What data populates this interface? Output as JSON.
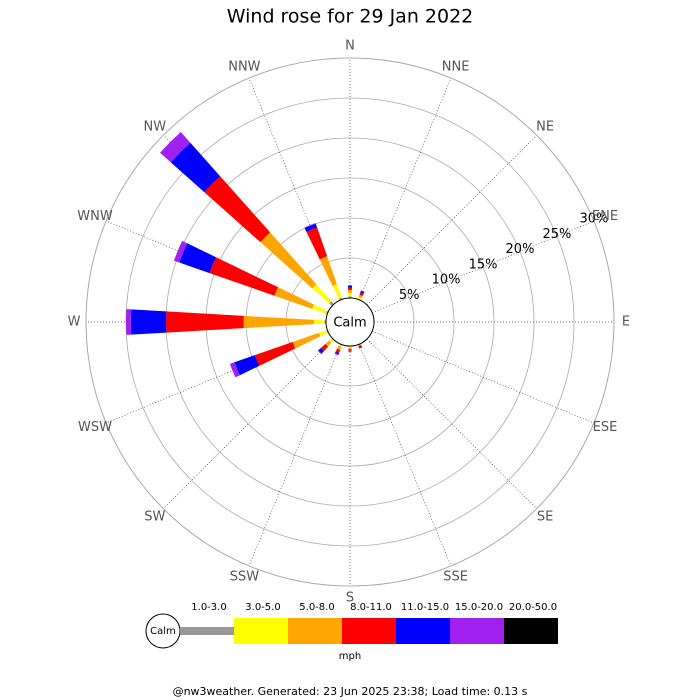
{
  "chart_data": {
    "type": "windrose",
    "title": "Wind rose for 29 Jan 2022",
    "calm_label": "Calm",
    "categories": [
      "N",
      "NNE",
      "NE",
      "ENE",
      "E",
      "ESE",
      "SE",
      "SSE",
      "S",
      "SSW",
      "SW",
      "WSW",
      "W",
      "WNW",
      "NW",
      "NNW"
    ],
    "rlim": [
      0,
      30
    ],
    "rticks": [
      {
        "value": 5,
        "label": "5%"
      },
      {
        "value": 10,
        "label": "10%"
      },
      {
        "value": 15,
        "label": "15%"
      },
      {
        "value": 20,
        "label": "20%"
      },
      {
        "value": 25,
        "label": "25%"
      },
      {
        "value": 30,
        "label": "30%"
      }
    ],
    "series": [
      {
        "name": "1.0-3.0",
        "color": "#999999",
        "values": [
          0.2,
          0,
          0,
          0,
          0,
          0,
          0,
          0,
          0,
          0,
          0.1,
          0.1,
          0.2,
          0.2,
          0.5,
          0.2
        ]
      },
      {
        "name": "3.0-5.0",
        "color": "#ffff00",
        "values": [
          0.4,
          0.3,
          0,
          0,
          0,
          0,
          0,
          0.1,
          0.2,
          0.3,
          0.4,
          1.0,
          1.3,
          1.8,
          2.8,
          1.8
        ]
      },
      {
        "name": "5.0-8.0",
        "color": "#ffa500",
        "values": [
          0.4,
          0.3,
          0,
          0,
          0,
          0,
          0,
          0.1,
          0.2,
          0.4,
          0.6,
          3.5,
          8.8,
          5.0,
          8.7,
          3.7
        ]
      },
      {
        "name": "8.0-11.0",
        "color": "#ff0000",
        "values": [
          0.3,
          0.3,
          0,
          0,
          0,
          0,
          0,
          0.2,
          0.2,
          0.4,
          0.8,
          5.0,
          9.7,
          8.6,
          9.4,
          3.8
        ]
      },
      {
        "name": "11.0-15.0",
        "color": "#0000ff",
        "values": [
          0.2,
          0.2,
          0,
          0,
          0,
          0,
          0,
          0.1,
          0.1,
          0.2,
          0.4,
          2.7,
          4.4,
          4.0,
          5.6,
          0.5
        ]
      },
      {
        "name": "15.0-20.0",
        "color": "#a020f0",
        "values": [
          0.1,
          0.1,
          0,
          0,
          0,
          0,
          0,
          0,
          0,
          0.1,
          0.1,
          0.6,
          0.6,
          0.7,
          1.8,
          0.1
        ]
      },
      {
        "name": "20.0-50.0",
        "color": "#000000",
        "values": [
          0,
          0,
          0,
          0,
          0,
          0,
          0,
          0,
          0,
          0,
          0,
          0,
          0,
          0,
          0,
          0
        ]
      }
    ],
    "unit_label": "mph",
    "footer": "@nw3weather. Generated: 23 Jun 2025 23:38; Load time: 0.13 s"
  }
}
